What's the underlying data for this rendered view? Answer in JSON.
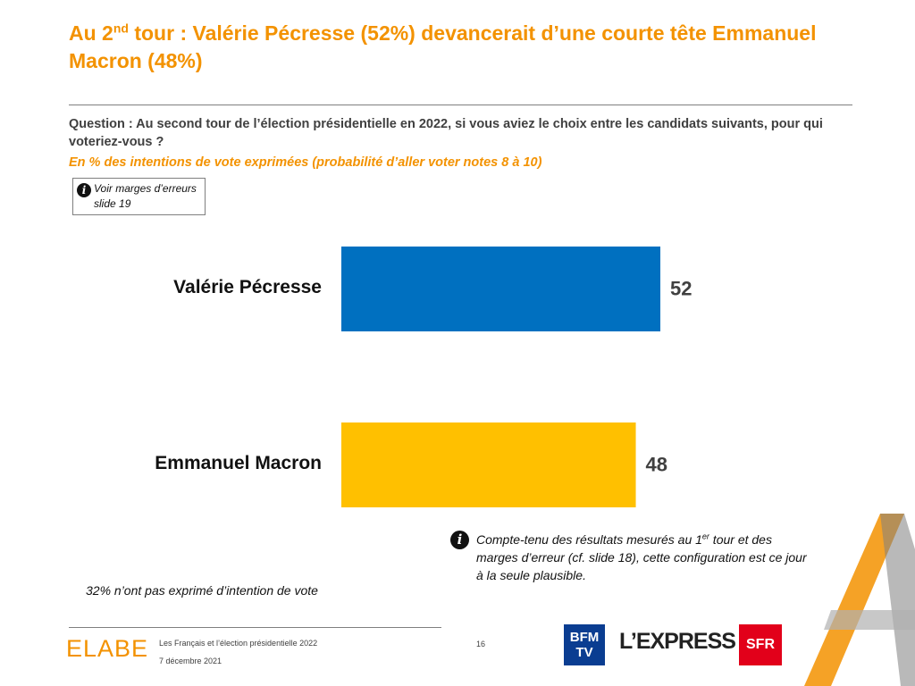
{
  "header": {
    "title_pre": "Au 2",
    "title_sup": "nd",
    "title_post": " tour : Valérie Pécresse (52%) devancerait d’une courte tête Emmanuel Macron (48%)"
  },
  "question": "Question : Au second tour de l’élection présidentielle en 2022, si vous aviez le choix entre les candidats suivants, pour qui voteriez-vous ?",
  "subtitle": "En % des intentions de vote exprimées (probabilité d’aller voter notes 8 à 10)",
  "infobox": {
    "line1": "Voir marges d’erreurs",
    "line2": "slide 19"
  },
  "chart_data": {
    "type": "bar",
    "orientation": "horizontal",
    "categories": [
      "Valérie Pécresse",
      "Emmanuel Macron"
    ],
    "values": [
      52,
      48
    ],
    "colors": [
      "#0070C0",
      "#FFC000"
    ],
    "xlim": [
      0,
      52
    ],
    "grid": false,
    "title": "",
    "xlabel": "",
    "ylabel": ""
  },
  "note": {
    "part1": "Compte-tenu des résultats mesurés au 1",
    "sup": "er",
    "part2": " tour et des marges d’erreur (cf. slide 18), cette configuration est ce jour à la seule plausible."
  },
  "abstain_note": "32% n’ont pas exprimé d’intention de vote",
  "footer": {
    "logo": "ELABE",
    "line1": "Les Français et l’élection présidentielle 2022",
    "line2": "7 décembre 2021",
    "page": "16",
    "partners": {
      "bfm": "BFM",
      "bfm_tv": "TV",
      "lexpress": "L’EXPRESS",
      "sfr": "SFR"
    }
  },
  "colors": {
    "accent": "#F39200",
    "text": "#404040"
  }
}
